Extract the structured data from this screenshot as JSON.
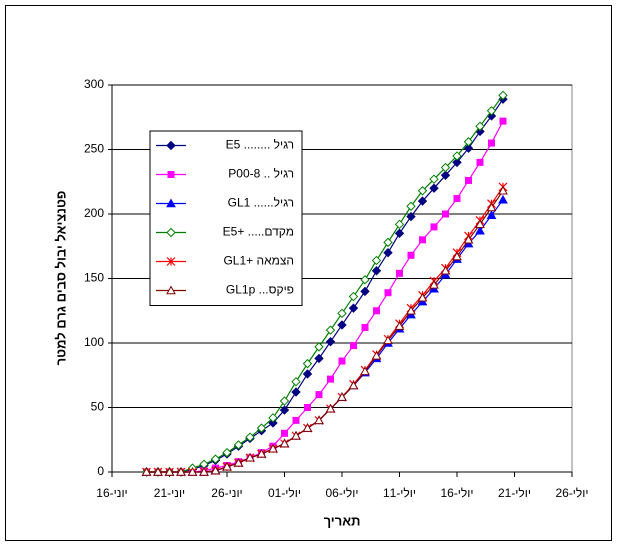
{
  "chart_data": {
    "type": "line",
    "xlabel": "תאריך",
    "ylabel": "פטנציאל יבול סבים גרם למטר",
    "x": [
      "06-19",
      "06-20",
      "06-21",
      "06-22",
      "06-23",
      "06-24",
      "06-25",
      "06-26",
      "06-27",
      "06-28",
      "06-29",
      "06-30",
      "07-01",
      "07-02",
      "07-03",
      "07-04",
      "07-05",
      "07-06",
      "07-07",
      "07-08",
      "07-09",
      "07-10",
      "07-11",
      "07-12",
      "07-13",
      "07-14",
      "07-15",
      "07-16",
      "07-17",
      "07-18",
      "07-19",
      "07-20"
    ],
    "xlim": [
      "06-16",
      "07-26"
    ],
    "xticks": [
      {
        "value": "06-16",
        "label": "יוני-16"
      },
      {
        "value": "06-21",
        "label": "יוני-21"
      },
      {
        "value": "06-26",
        "label": "יוני-26"
      },
      {
        "value": "07-01",
        "label": "יולי-01"
      },
      {
        "value": "07-06",
        "label": "יולי-06"
      },
      {
        "value": "07-11",
        "label": "יולי-11"
      },
      {
        "value": "07-16",
        "label": "יולי-16"
      },
      {
        "value": "07-21",
        "label": "יולי-21"
      },
      {
        "value": "07-26",
        "label": "יולי-26"
      }
    ],
    "ylim": [
      0,
      300
    ],
    "yticks": [
      0,
      50,
      100,
      150,
      200,
      250,
      300
    ],
    "grid": true,
    "series": [
      {
        "name": "רגיל ........ E5",
        "color": "#000080",
        "marker": "diamond",
        "values": [
          0,
          0,
          0,
          0,
          2,
          5,
          9,
          14,
          20,
          26,
          32,
          38,
          48,
          62,
          76,
          88,
          101,
          114,
          127,
          140,
          156,
          170,
          185,
          198,
          210,
          220,
          230,
          240,
          251,
          264,
          276,
          289
        ]
      },
      {
        "name": "רגיל .. P00-8",
        "color": "#ff00ff",
        "marker": "square",
        "values": [
          0,
          0,
          0,
          0,
          0,
          1,
          3,
          5,
          8,
          11,
          15,
          20,
          30,
          40,
          50,
          60,
          72,
          86,
          98,
          112,
          125,
          139,
          154,
          168,
          180,
          190,
          200,
          212,
          226,
          240,
          255,
          272
        ]
      },
      {
        "name": "רגיל...... GL1",
        "color": "#0000ff",
        "marker": "triangle",
        "values": [
          0,
          0,
          0,
          0,
          0,
          0,
          1,
          4,
          7,
          11,
          14,
          18,
          22,
          28,
          34,
          40,
          49,
          58,
          67,
          77,
          88,
          100,
          111,
          122,
          132,
          142,
          153,
          165,
          177,
          187,
          199,
          211
        ]
      },
      {
        "name": "מקדם..... +E5",
        "color": "#008000",
        "marker": "open-diamond",
        "values": [
          0,
          0,
          0,
          0,
          3,
          6,
          10,
          15,
          21,
          27,
          34,
          42,
          55,
          70,
          84,
          97,
          110,
          123,
          136,
          149,
          164,
          178,
          192,
          206,
          218,
          227,
          236,
          245,
          256,
          268,
          280,
          292
        ]
      },
      {
        "name": "הצמאה +GL1",
        "color": "#ff0000",
        "marker": "asterisk",
        "values": [
          0,
          0,
          0,
          0,
          0,
          0,
          1,
          4,
          7,
          11,
          14,
          18,
          22,
          28,
          34,
          40,
          49,
          58,
          68,
          79,
          91,
          103,
          115,
          127,
          137,
          148,
          158,
          170,
          183,
          195,
          208,
          221
        ]
      },
      {
        "name": "פיקס... GL1p",
        "color": "#800000",
        "marker": "open-triangle",
        "values": [
          0,
          0,
          0,
          0,
          0,
          0,
          1,
          4,
          7,
          11,
          14,
          18,
          22,
          28,
          34,
          40,
          49,
          58,
          67,
          78,
          90,
          102,
          113,
          125,
          135,
          145,
          156,
          167,
          180,
          192,
          205,
          218
        ]
      }
    ]
  }
}
